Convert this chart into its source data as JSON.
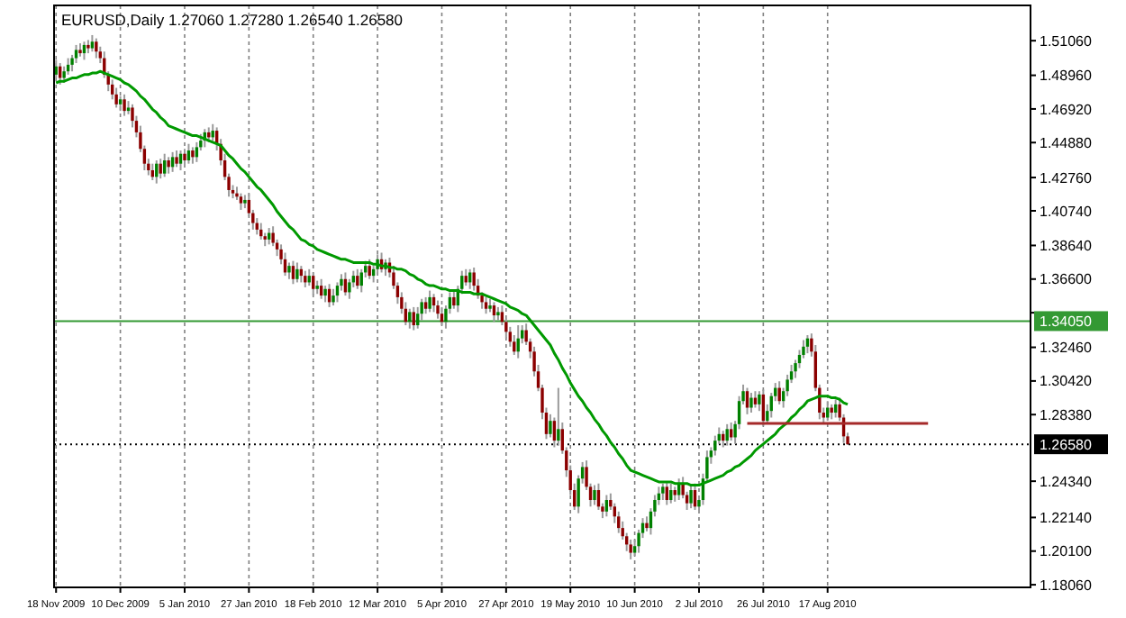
{
  "chart_data": {
    "type": "candlestick",
    "title": "EURUSD,Daily  1.27060 1.27280 1.26540 1.26580",
    "categories": [
      "18 Nov 2009",
      null,
      null,
      null,
      null,
      null,
      null,
      null,
      null,
      null,
      null,
      null,
      null,
      null,
      null,
      null,
      "10 Dec 2009",
      null,
      null,
      null,
      null,
      null,
      null,
      null,
      null,
      null,
      null,
      null,
      null,
      null,
      null,
      null,
      "5 Jan 2010",
      null,
      null,
      null,
      null,
      null,
      null,
      null,
      null,
      null,
      null,
      null,
      null,
      null,
      null,
      null,
      "27 Jan 2010",
      null,
      null,
      null,
      null,
      null,
      null,
      null,
      null,
      null,
      null,
      null,
      null,
      null,
      null,
      null,
      "18 Feb 2010",
      null,
      null,
      null,
      null,
      null,
      null,
      null,
      null,
      null,
      null,
      null,
      null,
      null,
      null,
      null,
      "12 Mar 2010",
      null,
      null,
      null,
      null,
      null,
      null,
      null,
      null,
      null,
      null,
      null,
      null,
      null,
      null,
      null,
      "5 Apr 2010",
      null,
      null,
      null,
      null,
      null,
      null,
      null,
      null,
      null,
      null,
      null,
      null,
      null,
      null,
      null,
      "27 Apr 2010",
      null,
      null,
      null,
      null,
      null,
      null,
      null,
      null,
      null,
      null,
      null,
      null,
      null,
      null,
      null,
      "19 May 2010",
      null,
      null,
      null,
      null,
      null,
      null,
      null,
      null,
      null,
      null,
      null,
      null,
      null,
      null,
      null,
      "10 Jun 2010",
      null,
      null,
      null,
      null,
      null,
      null,
      null,
      null,
      null,
      null,
      null,
      null,
      null,
      null,
      null,
      "2 Jul 2010",
      null,
      null,
      null,
      null,
      null,
      null,
      null,
      null,
      null,
      null,
      null,
      null,
      null,
      null,
      null,
      "26 Jul 2010",
      null,
      null,
      null,
      null,
      null,
      null,
      null,
      null,
      null,
      null,
      null,
      null,
      null,
      null,
      null,
      "17 Aug 2010",
      null,
      null,
      null,
      null,
      null,
      null,
      null,
      null,
      null,
      null,
      null,
      null,
      null,
      null,
      null,
      null,
      null,
      null,
      null,
      null,
      null,
      null,
      null,
      null,
      null,
      null,
      null,
      null,
      null,
      null,
      null,
      null,
      null,
      null,
      null,
      null,
      null,
      null,
      null,
      null,
      null,
      null,
      null,
      null,
      null,
      null,
      null,
      null,
      null,
      null
    ],
    "ohlc": [
      [
        1.49,
        1.499,
        1.488,
        1.495
      ],
      [
        1.495,
        1.497,
        1.484,
        1.488
      ],
      [
        1.488,
        1.495,
        1.485,
        1.492
      ],
      [
        1.492,
        1.5,
        1.49,
        1.496
      ],
      [
        1.496,
        1.502,
        1.492,
        1.5
      ],
      [
        1.5,
        1.508,
        1.497,
        1.505
      ],
      [
        1.505,
        1.509,
        1.501,
        1.503
      ],
      [
        1.503,
        1.51,
        1.499,
        1.508
      ],
      [
        1.508,
        1.511,
        1.503,
        1.506
      ],
      [
        1.506,
        1.514,
        1.504,
        1.51
      ],
      [
        1.51,
        1.512,
        1.5,
        1.504
      ],
      [
        1.504,
        1.507,
        1.497,
        1.5
      ],
      [
        1.5,
        1.504,
        1.488,
        1.49
      ],
      [
        1.49,
        1.492,
        1.48,
        1.484
      ],
      [
        1.484,
        1.487,
        1.475,
        1.478
      ],
      [
        1.478,
        1.482,
        1.47,
        1.472
      ],
      [
        1.472,
        1.477,
        1.468,
        1.475
      ],
      [
        1.475,
        1.478,
        1.465,
        1.468
      ],
      [
        1.468,
        1.474,
        1.466,
        1.47
      ],
      [
        1.47,
        1.472,
        1.458,
        1.462
      ],
      [
        1.462,
        1.465,
        1.452,
        1.455
      ],
      [
        1.455,
        1.459,
        1.443,
        1.445
      ],
      [
        1.445,
        1.447,
        1.432,
        1.436
      ],
      [
        1.436,
        1.439,
        1.429,
        1.432
      ],
      [
        1.432,
        1.436,
        1.426,
        1.428
      ],
      [
        1.428,
        1.438,
        1.424,
        1.436
      ],
      [
        1.436,
        1.439,
        1.427,
        1.43
      ],
      [
        1.43,
        1.442,
        1.428,
        1.438
      ],
      [
        1.438,
        1.44,
        1.43,
        1.434
      ],
      [
        1.434,
        1.443,
        1.431,
        1.44
      ],
      [
        1.44,
        1.444,
        1.434,
        1.436
      ],
      [
        1.436,
        1.444,
        1.432,
        1.442
      ],
      [
        1.442,
        1.445,
        1.435,
        1.438
      ],
      [
        1.438,
        1.448,
        1.436,
        1.444
      ],
      [
        1.444,
        1.446,
        1.436,
        1.44
      ],
      [
        1.44,
        1.449,
        1.437,
        1.446
      ],
      [
        1.446,
        1.454,
        1.444,
        1.45
      ],
      [
        1.45,
        1.457,
        1.446,
        1.455
      ],
      [
        1.455,
        1.458,
        1.449,
        1.452
      ],
      [
        1.452,
        1.46,
        1.45,
        1.456
      ],
      [
        1.456,
        1.458,
        1.444,
        1.448
      ],
      [
        1.448,
        1.451,
        1.435,
        1.438
      ],
      [
        1.438,
        1.442,
        1.426,
        1.428
      ],
      [
        1.428,
        1.43,
        1.416,
        1.42
      ],
      [
        1.42,
        1.423,
        1.415,
        1.418
      ],
      [
        1.418,
        1.422,
        1.414,
        1.416
      ],
      [
        1.416,
        1.418,
        1.408,
        1.412
      ],
      [
        1.412,
        1.417,
        1.409,
        1.414
      ],
      [
        1.414,
        1.418,
        1.404,
        1.406
      ],
      [
        1.406,
        1.408,
        1.396,
        1.4
      ],
      [
        1.4,
        1.403,
        1.393,
        1.396
      ],
      [
        1.396,
        1.4,
        1.39,
        1.392
      ],
      [
        1.392,
        1.394,
        1.386,
        1.39
      ],
      [
        1.39,
        1.397,
        1.387,
        1.394
      ],
      [
        1.394,
        1.398,
        1.386,
        1.388
      ],
      [
        1.388,
        1.39,
        1.38,
        1.384
      ],
      [
        1.384,
        1.387,
        1.375,
        1.378
      ],
      [
        1.378,
        1.382,
        1.368,
        1.37
      ],
      [
        1.37,
        1.376,
        1.366,
        1.374
      ],
      [
        1.374,
        1.377,
        1.363,
        1.366
      ],
      [
        1.366,
        1.376,
        1.364,
        1.372
      ],
      [
        1.372,
        1.374,
        1.364,
        1.368
      ],
      [
        1.368,
        1.371,
        1.361,
        1.364
      ],
      [
        1.364,
        1.372,
        1.362,
        1.368
      ],
      [
        1.368,
        1.37,
        1.356,
        1.36
      ],
      [
        1.36,
        1.365,
        1.357,
        1.362
      ],
      [
        1.362,
        1.366,
        1.354,
        1.356
      ],
      [
        1.356,
        1.362,
        1.352,
        1.36
      ],
      [
        1.36,
        1.363,
        1.349,
        1.352
      ],
      [
        1.352,
        1.36,
        1.35,
        1.356
      ],
      [
        1.356,
        1.364,
        1.352,
        1.362
      ],
      [
        1.362,
        1.369,
        1.359,
        1.366
      ],
      [
        1.366,
        1.37,
        1.356,
        1.358
      ],
      [
        1.358,
        1.366,
        1.354,
        1.364
      ],
      [
        1.364,
        1.371,
        1.361,
        1.368
      ],
      [
        1.368,
        1.372,
        1.36,
        1.362
      ],
      [
        1.362,
        1.372,
        1.358,
        1.37
      ],
      [
        1.37,
        1.377,
        1.367,
        1.374
      ],
      [
        1.374,
        1.378,
        1.366,
        1.368
      ],
      [
        1.368,
        1.374,
        1.364,
        1.372
      ],
      [
        1.372,
        1.381,
        1.369,
        1.378
      ],
      [
        1.378,
        1.382,
        1.37,
        1.372
      ],
      [
        1.372,
        1.378,
        1.368,
        1.376
      ],
      [
        1.376,
        1.379,
        1.367,
        1.37
      ],
      [
        1.37,
        1.374,
        1.36,
        1.362
      ],
      [
        1.362,
        1.364,
        1.351,
        1.355
      ],
      [
        1.355,
        1.358,
        1.345,
        1.348
      ],
      [
        1.348,
        1.352,
        1.338,
        1.34
      ],
      [
        1.34,
        1.348,
        1.336,
        1.346
      ],
      [
        1.346,
        1.349,
        1.335,
        1.338
      ],
      [
        1.338,
        1.349,
        1.336,
        1.345
      ],
      [
        1.345,
        1.354,
        1.341,
        1.352
      ],
      [
        1.352,
        1.355,
        1.345,
        1.348
      ],
      [
        1.348,
        1.359,
        1.346,
        1.355
      ],
      [
        1.355,
        1.357,
        1.346,
        1.35
      ],
      [
        1.35,
        1.353,
        1.342,
        1.345
      ],
      [
        1.345,
        1.349,
        1.338,
        1.34
      ],
      [
        1.34,
        1.35,
        1.336,
        1.348
      ],
      [
        1.348,
        1.358,
        1.345,
        1.355
      ],
      [
        1.355,
        1.359,
        1.348,
        1.35
      ],
      [
        1.35,
        1.362,
        1.346,
        1.36
      ],
      [
        1.36,
        1.371,
        1.357,
        1.368
      ],
      [
        1.368,
        1.372,
        1.362,
        1.364
      ],
      [
        1.364,
        1.372,
        1.36,
        1.37
      ],
      [
        1.37,
        1.373,
        1.359,
        1.362
      ],
      [
        1.362,
        1.366,
        1.354,
        1.356
      ],
      [
        1.356,
        1.358,
        1.348,
        1.352
      ],
      [
        1.352,
        1.355,
        1.345,
        1.348
      ],
      [
        1.348,
        1.354,
        1.346,
        1.35
      ],
      [
        1.35,
        1.352,
        1.34,
        1.344
      ],
      [
        1.344,
        1.349,
        1.341,
        1.346
      ],
      [
        1.346,
        1.35,
        1.338,
        1.34
      ],
      [
        1.34,
        1.342,
        1.33,
        1.334
      ],
      [
        1.334,
        1.337,
        1.325,
        1.328
      ],
      [
        1.328,
        1.332,
        1.32,
        1.322
      ],
      [
        1.322,
        1.338,
        1.318,
        1.33
      ],
      [
        1.33,
        1.338,
        1.327,
        1.335
      ],
      [
        1.335,
        1.339,
        1.326,
        1.328
      ],
      [
        1.328,
        1.33,
        1.318,
        1.322
      ],
      [
        1.322,
        1.325,
        1.307,
        1.31
      ],
      [
        1.31,
        1.314,
        1.298,
        1.3
      ],
      [
        1.3,
        1.302,
        1.281,
        1.285
      ],
      [
        1.285,
        1.288,
        1.269,
        1.272
      ],
      [
        1.272,
        1.284,
        1.27,
        1.28
      ],
      [
        1.28,
        1.282,
        1.264,
        1.268
      ],
      [
        1.268,
        1.3,
        1.265,
        1.275
      ],
      [
        1.275,
        1.279,
        1.26,
        1.262
      ],
      [
        1.262,
        1.264,
        1.246,
        1.25
      ],
      [
        1.25,
        1.253,
        1.235,
        1.238
      ],
      [
        1.238,
        1.242,
        1.226,
        1.228
      ],
      [
        1.228,
        1.247,
        1.224,
        1.245
      ],
      [
        1.245,
        1.255,
        1.242,
        1.252
      ],
      [
        1.252,
        1.256,
        1.238,
        1.24
      ],
      [
        1.24,
        1.242,
        1.228,
        1.232
      ],
      [
        1.232,
        1.241,
        1.229,
        1.238
      ],
      [
        1.238,
        1.242,
        1.226,
        1.228
      ],
      [
        1.228,
        1.23,
        1.221,
        1.225
      ],
      [
        1.225,
        1.235,
        1.222,
        1.232
      ],
      [
        1.232,
        1.236,
        1.226,
        1.228
      ],
      [
        1.228,
        1.23,
        1.218,
        1.222
      ],
      [
        1.222,
        1.225,
        1.212,
        1.215
      ],
      [
        1.215,
        1.219,
        1.208,
        1.21
      ],
      [
        1.21,
        1.212,
        1.201,
        1.205
      ],
      [
        1.205,
        1.208,
        1.196,
        1.2
      ],
      [
        1.2,
        1.208,
        1.198,
        1.204
      ],
      [
        1.204,
        1.214,
        1.2,
        1.212
      ],
      [
        1.212,
        1.221,
        1.209,
        1.218
      ],
      [
        1.218,
        1.222,
        1.213,
        1.215
      ],
      [
        1.215,
        1.227,
        1.211,
        1.225
      ],
      [
        1.225,
        1.235,
        1.222,
        1.232
      ],
      [
        1.232,
        1.24,
        1.229,
        1.236
      ],
      [
        1.236,
        1.242,
        1.232,
        1.24
      ],
      [
        1.24,
        1.243,
        1.229,
        1.232
      ],
      [
        1.232,
        1.242,
        1.23,
        1.238
      ],
      [
        1.238,
        1.24,
        1.231,
        1.235
      ],
      [
        1.235,
        1.245,
        1.232,
        1.242
      ],
      [
        1.242,
        1.246,
        1.233,
        1.235
      ],
      [
        1.235,
        1.237,
        1.226,
        1.23
      ],
      [
        1.23,
        1.241,
        1.227,
        1.238
      ],
      [
        1.238,
        1.242,
        1.226,
        1.228
      ],
      [
        1.228,
        1.234,
        1.224,
        1.232
      ],
      [
        1.232,
        1.248,
        1.229,
        1.245
      ],
      [
        1.245,
        1.262,
        1.243,
        1.258
      ],
      [
        1.258,
        1.264,
        1.254,
        1.262
      ],
      [
        1.262,
        1.271,
        1.259,
        1.268
      ],
      [
        1.268,
        1.276,
        1.266,
        1.272
      ],
      [
        1.272,
        1.274,
        1.264,
        1.268
      ],
      [
        1.268,
        1.278,
        1.265,
        1.275
      ],
      [
        1.275,
        1.279,
        1.268,
        1.27
      ],
      [
        1.27,
        1.28,
        1.266,
        1.278
      ],
      [
        1.278,
        1.295,
        1.275,
        1.292
      ],
      [
        1.292,
        1.302,
        1.29,
        1.298
      ],
      [
        1.298,
        1.3,
        1.284,
        1.288
      ],
      [
        1.288,
        1.297,
        1.285,
        1.294
      ],
      [
        1.294,
        1.298,
        1.288,
        1.29
      ],
      [
        1.29,
        1.298,
        1.286,
        1.296
      ],
      [
        1.296,
        1.299,
        1.277,
        1.28
      ],
      [
        1.28,
        1.29,
        1.278,
        1.286
      ],
      [
        1.286,
        1.297,
        1.282,
        1.295
      ],
      [
        1.295,
        1.303,
        1.292,
        1.3
      ],
      [
        1.3,
        1.304,
        1.29,
        1.292
      ],
      [
        1.292,
        1.3,
        1.288,
        1.298
      ],
      [
        1.298,
        1.308,
        1.295,
        1.305
      ],
      [
        1.305,
        1.314,
        1.303,
        1.31
      ],
      [
        1.31,
        1.317,
        1.306,
        1.315
      ],
      [
        1.315,
        1.323,
        1.312,
        1.32
      ],
      [
        1.32,
        1.329,
        1.318,
        1.325
      ],
      [
        1.325,
        1.332,
        1.321,
        1.33
      ],
      [
        1.33,
        1.333,
        1.319,
        1.322
      ],
      [
        1.322,
        1.326,
        1.298,
        1.3
      ],
      [
        1.3,
        1.302,
        1.281,
        1.285
      ],
      [
        1.285,
        1.288,
        1.279,
        1.282
      ],
      [
        1.282,
        1.292,
        1.28,
        1.288
      ],
      [
        1.288,
        1.29,
        1.281,
        1.285
      ],
      [
        1.285,
        1.293,
        1.282,
        1.29
      ],
      [
        1.29,
        1.294,
        1.28,
        1.282
      ],
      [
        1.282,
        1.284,
        1.2666,
        1.2706
      ],
      [
        1.2706,
        1.2728,
        1.2654,
        1.2658
      ],
      null,
      null,
      null,
      null,
      null,
      null,
      null,
      null,
      null,
      null,
      null,
      null,
      null,
      null,
      null,
      null,
      null,
      null,
      null,
      null,
      null,
      null,
      null,
      null,
      null,
      null,
      null,
      null,
      null,
      null,
      null,
      null,
      null,
      null,
      null,
      null,
      null,
      null,
      null,
      null,
      null,
      null,
      null,
      null,
      null
    ],
    "series": [
      {
        "type": "line",
        "color": "#009900",
        "values": [
          1.485,
          1.486,
          1.486,
          1.487,
          1.488,
          1.488,
          1.489,
          1.49,
          1.49,
          1.491,
          1.491,
          1.492,
          1.491,
          1.49,
          1.489,
          1.488,
          1.487,
          1.485,
          1.484,
          1.482,
          1.48,
          1.477,
          1.475,
          1.472,
          1.469,
          1.467,
          1.464,
          1.462,
          1.459,
          1.458,
          1.457,
          1.456,
          1.455,
          1.454,
          1.453,
          1.453,
          1.452,
          1.451,
          1.45,
          1.449,
          1.448,
          1.447,
          1.444,
          1.441,
          1.439,
          1.436,
          1.433,
          1.431,
          1.428,
          1.425,
          1.422,
          1.42,
          1.417,
          1.414,
          1.411,
          1.407,
          1.404,
          1.401,
          1.398,
          1.396,
          1.393,
          1.39,
          1.389,
          1.387,
          1.386,
          1.384,
          1.383,
          1.382,
          1.381,
          1.38,
          1.379,
          1.378,
          1.378,
          1.377,
          1.376,
          1.376,
          1.376,
          1.376,
          1.376,
          1.375,
          1.375,
          1.374,
          1.374,
          1.373,
          1.373,
          1.372,
          1.372,
          1.371,
          1.369,
          1.368,
          1.366,
          1.365,
          1.363,
          1.362,
          1.362,
          1.361,
          1.36,
          1.36,
          1.359,
          1.359,
          1.359,
          1.358,
          1.358,
          1.358,
          1.357,
          1.357,
          1.357,
          1.356,
          1.355,
          1.354,
          1.353,
          1.352,
          1.351,
          1.349,
          1.348,
          1.347,
          1.345,
          1.344,
          1.341,
          1.338,
          1.335,
          1.332,
          1.329,
          1.326,
          1.321,
          1.317,
          1.312,
          1.308,
          1.303,
          1.299,
          1.295,
          1.292,
          1.288,
          1.285,
          1.281,
          1.278,
          1.274,
          1.271,
          1.267,
          1.264,
          1.26,
          1.257,
          1.253,
          1.25,
          1.249,
          1.248,
          1.247,
          1.246,
          1.245,
          1.244,
          1.243,
          1.243,
          1.243,
          1.243,
          1.242,
          1.242,
          1.242,
          1.242,
          1.241,
          1.241,
          1.241,
          1.242,
          1.243,
          1.244,
          1.245,
          1.246,
          1.247,
          1.249,
          1.25,
          1.252,
          1.253,
          1.255,
          1.257,
          1.259,
          1.262,
          1.264,
          1.266,
          1.268,
          1.27,
          1.272,
          1.275,
          1.277,
          1.279,
          1.282,
          1.284,
          1.287,
          1.289,
          1.292,
          1.293,
          1.294,
          1.295,
          1.295,
          1.295,
          1.294,
          1.294,
          1.293,
          1.291,
          1.29,
          null,
          null,
          null,
          null,
          null,
          null,
          null,
          null,
          null,
          null,
          null,
          null,
          null,
          null,
          null,
          null,
          null,
          null,
          null,
          null,
          null,
          null,
          null,
          null,
          null,
          null,
          null,
          null,
          null,
          null,
          null,
          null,
          null,
          null,
          null,
          null,
          null,
          null,
          null,
          null,
          null,
          null,
          null,
          null,
          null
        ]
      },
      {
        "type": "line",
        "color": "#a52a2a",
        "values": [
          null,
          null,
          null,
          null,
          null,
          null,
          null,
          null,
          null,
          null,
          null,
          null,
          null,
          null,
          null,
          null,
          null,
          null,
          null,
          null,
          null,
          null,
          null,
          null,
          null,
          null,
          null,
          null,
          null,
          null,
          null,
          null,
          null,
          null,
          null,
          null,
          null,
          null,
          null,
          null,
          null,
          null,
          null,
          null,
          null,
          null,
          null,
          null,
          null,
          null,
          null,
          null,
          null,
          null,
          null,
          null,
          null,
          null,
          null,
          null,
          null,
          null,
          null,
          null,
          null,
          null,
          null,
          null,
          null,
          null,
          null,
          null,
          null,
          null,
          null,
          null,
          null,
          null,
          null,
          null,
          null,
          null,
          null,
          null,
          null,
          null,
          null,
          null,
          null,
          null,
          null,
          null,
          null,
          null,
          null,
          null,
          null,
          null,
          null,
          null,
          null,
          null,
          null,
          null,
          null,
          null,
          null,
          null,
          null,
          null,
          null,
          null,
          null,
          null,
          null,
          null,
          null,
          null,
          null,
          null,
          null,
          null,
          null,
          null,
          null,
          null,
          null,
          null,
          null,
          null,
          null,
          null,
          null,
          null,
          null,
          null,
          null,
          null,
          null,
          null,
          null,
          null,
          null,
          null,
          null,
          null,
          null,
          null,
          null,
          null,
          null,
          null,
          null,
          null,
          null,
          null,
          null,
          null,
          null,
          null,
          null,
          null,
          null,
          null,
          null,
          null,
          null,
          null,
          null,
          null,
          null,
          null,
          1.2785,
          1.2785,
          1.2785,
          1.2785,
          1.2785,
          1.2785,
          1.2785,
          1.2785,
          1.2785,
          1.2785,
          1.2785,
          1.2785,
          1.2785,
          1.2785,
          1.2785,
          1.2785,
          1.2785,
          1.2785,
          1.2785,
          1.2785,
          1.2785,
          1.2785,
          1.2785,
          1.2785,
          1.2785,
          1.2785,
          1.2785,
          1.2785,
          1.2785,
          1.2785,
          1.2785,
          1.2785,
          1.2785,
          1.2785,
          1.2785,
          1.2785,
          1.2785,
          1.2785,
          1.2785,
          1.2785,
          1.2785,
          1.2785,
          1.2785,
          1.2785,
          1.2785,
          1.2785,
          null,
          null,
          null,
          null,
          null,
          null,
          null,
          null,
          null,
          null,
          null,
          null,
          null,
          null,
          null,
          null,
          null,
          null,
          null,
          null,
          null,
          null,
          null,
          null,
          null
        ]
      }
    ],
    "ylim": [
      1.179,
      1.532
    ],
    "yticks": [
      {
        "value": 1.5106,
        "label": "1.51060"
      },
      {
        "value": 1.4896,
        "label": "1.48960"
      },
      {
        "value": 1.4692,
        "label": "1.46920"
      },
      {
        "value": 1.4488,
        "label": "1.44880"
      },
      {
        "value": 1.4276,
        "label": "1.42760"
      },
      {
        "value": 1.4074,
        "label": "1.40740"
      },
      {
        "value": 1.3864,
        "label": "1.38640"
      },
      {
        "value": 1.366,
        "label": "1.36600"
      },
      {
        "value": 1.3456,
        "label": null
      },
      {
        "value": 1.3246,
        "label": "1.32460"
      },
      {
        "value": 1.3042,
        "label": "1.30420"
      },
      {
        "value": 1.2838,
        "label": "1.28380"
      },
      {
        "value": 1.2434,
        "label": "1.24340"
      },
      {
        "value": 1.2214,
        "label": "1.22140"
      },
      {
        "value": 1.201,
        "label": "1.20100"
      },
      {
        "value": 1.1806,
        "label": "1.18060"
      }
    ],
    "ref_lines": [
      {
        "axis": "y",
        "value": 1.3405,
        "label": "1.34050",
        "color": "#339933",
        "line_style": "solid"
      },
      {
        "axis": "y",
        "value": 1.2658,
        "label": "1.26580",
        "color": "#000000",
        "line_style": "dotted"
      }
    ],
    "grid": "x"
  }
}
